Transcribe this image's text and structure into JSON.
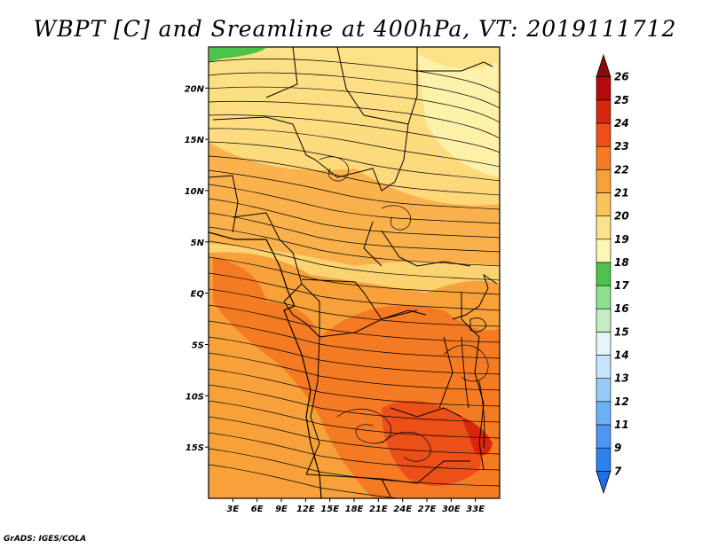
{
  "title": "WBPT [C] and Sreamline at 400hPa, VT: 2019111712",
  "credit": "GrADS: IGES/COLA",
  "map": {
    "lon_range": [
      0,
      36
    ],
    "lat_range": [
      -20,
      24
    ],
    "lon_ticks": [
      3,
      6,
      9,
      12,
      15,
      18,
      21,
      24,
      27,
      30,
      33
    ],
    "lon_tick_labels": [
      "3E",
      "6E",
      "9E",
      "12E",
      "15E",
      "18E",
      "21E",
      "24E",
      "27E",
      "30E",
      "33E"
    ],
    "lat_ticks": [
      20,
      15,
      10,
      5,
      0,
      -5,
      -10,
      -15
    ],
    "lat_tick_labels": [
      "20N",
      "15N",
      "10N",
      "5N",
      "EQ",
      "5S",
      "10S",
      "15S"
    ]
  },
  "colorbar": {
    "levels": [
      "7",
      "9",
      "11",
      "12",
      "13",
      "14",
      "15",
      "16",
      "17",
      "18",
      "19",
      "20",
      "21",
      "22",
      "23",
      "24",
      "25",
      "26"
    ],
    "colors": [
      "#1e6ee6",
      "#2c80ef",
      "#4c97f3",
      "#6cb0f7",
      "#98cbfa",
      "#c8e3fc",
      "#e4f4f8",
      "#c4edc4",
      "#8ee08e",
      "#4cc44c",
      "#fdf6b4",
      "#fde288",
      "#fbc45a",
      "#f8a13a",
      "#f47a24",
      "#ec4f18",
      "#d8260e",
      "#b40a0a",
      "#8c0a0a"
    ]
  }
}
